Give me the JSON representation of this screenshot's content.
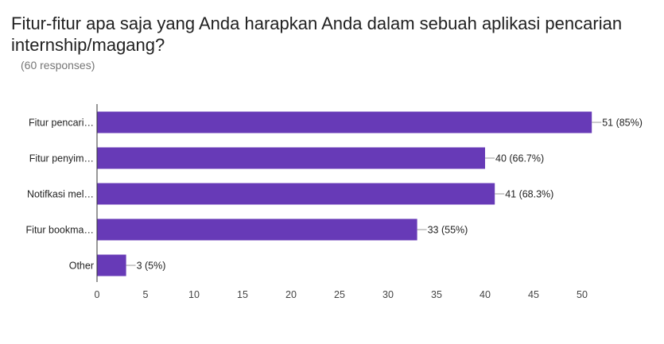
{
  "header": {
    "title": "Fitur-fitur apa saja yang Anda harapkan Anda dalam sebuah aplikasi pencarian internship/magang?",
    "responses": "(60 responses)"
  },
  "chart_data": {
    "type": "bar",
    "orientation": "horizontal",
    "categories": [
      "Fitur pencari…",
      "Fitur penyim…",
      "Notifkasi mel…",
      "Fitur bookma…",
      "Other"
    ],
    "values": [
      51,
      40,
      41,
      33,
      3
    ],
    "data_labels": [
      "51 (85%)",
      "40 (66.7%)",
      "41 (68.3%)",
      "33 (55%)",
      "3 (5%)"
    ],
    "xlim": [
      0,
      52
    ],
    "x_ticks": [
      0,
      5,
      10,
      15,
      20,
      25,
      30,
      35,
      40,
      45,
      50
    ],
    "bar_color": "#673ab7",
    "grid": false,
    "legend": "none"
  }
}
